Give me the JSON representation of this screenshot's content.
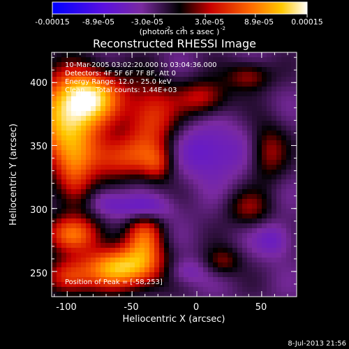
{
  "chart_data": {
    "type": "heatmap",
    "title": "Reconstructed RHESSI Image",
    "xlabel": "Heliocentric X (arcsec)",
    "ylabel": "Heliocentric Y (arcsec)",
    "xlim": [
      -112,
      77
    ],
    "ylim": [
      230,
      424
    ],
    "xticks": [
      -100,
      -50,
      0,
      50
    ],
    "xtick_labels": [
      "-100",
      "-50",
      "0",
      "50"
    ],
    "yticks": [
      250,
      300,
      350,
      400
    ],
    "ytick_labels": [
      "250",
      "300",
      "350",
      "400"
    ],
    "colorbar": {
      "range": [
        -0.00015,
        0.00015
      ],
      "ticks": [
        -0.00015,
        -8.9e-05,
        -3e-05,
        3e-05,
        8.9e-05,
        0.00015
      ],
      "tick_labels": [
        "-0.00015",
        "-8.9e-05",
        "-3.0e-05",
        "3.0e-05",
        "8.9e-05",
        "0.00015"
      ],
      "unit_text": "(photons cm  s  asec )",
      "unit_exponents": [
        "-2",
        "-1",
        "-2"
      ]
    },
    "info": {
      "time_range": "10-Mar-2005 03:02:20.000 to 03:04:36.000",
      "detectors": "Detectors: 4F 5F 6F 7F 8F, Att 0",
      "energy_range": "Energy Range: 12.0 - 25.0 keV",
      "method_counts": "Clean     Total counts: 1.44E+03"
    },
    "peak_text": "Position of Peak = [-58,253]",
    "peak_position": [
      -58,
      253
    ],
    "grid": false,
    "blobs": [
      {
        "x": -100,
        "y": 370,
        "value": 0.00015,
        "sx": 20,
        "sy": 24
      },
      {
        "x": -80,
        "y": 390,
        "value": 0.00011,
        "sx": 18,
        "sy": 14
      },
      {
        "x": -60,
        "y": 340,
        "value": 8e-05,
        "sx": 22,
        "sy": 12
      },
      {
        "x": -35,
        "y": 372,
        "value": 9e-05,
        "sx": 14,
        "sy": 20
      },
      {
        "x": -95,
        "y": 320,
        "value": 7e-05,
        "sx": 10,
        "sy": 16
      },
      {
        "x": -58,
        "y": 253,
        "value": 0.00015,
        "sx": 22,
        "sy": 12
      },
      {
        "x": -95,
        "y": 280,
        "value": 0.0001,
        "sx": 16,
        "sy": 10
      },
      {
        "x": -100,
        "y": 245,
        "value": 8e-05,
        "sx": 12,
        "sy": 10
      },
      {
        "x": -40,
        "y": 278,
        "value": 9e-05,
        "sx": 10,
        "sy": 16
      },
      {
        "x": 5,
        "y": 388,
        "value": 7e-05,
        "sx": 14,
        "sy": 10
      },
      {
        "x": 40,
        "y": 405,
        "value": 6e-05,
        "sx": 12,
        "sy": 8
      },
      {
        "x": 55,
        "y": 345,
        "value": 6e-05,
        "sx": 10,
        "sy": 16
      },
      {
        "x": 40,
        "y": 300,
        "value": 5e-05,
        "sx": 12,
        "sy": 10
      },
      {
        "x": 20,
        "y": 258,
        "value": 5e-05,
        "sx": 10,
        "sy": 8
      },
      {
        "x": -30,
        "y": 335,
        "value": 5e-05,
        "sx": 8,
        "sy": 10
      },
      {
        "x": -40,
        "y": 300,
        "value": -6e-05,
        "sx": 14,
        "sy": 8
      },
      {
        "x": 10,
        "y": 345,
        "value": -5e-05,
        "sx": 20,
        "sy": 16
      },
      {
        "x": -70,
        "y": 305,
        "value": -4e-05,
        "sx": 10,
        "sy": 8
      },
      {
        "x": -10,
        "y": 250,
        "value": -4e-05,
        "sx": 12,
        "sy": 8
      },
      {
        "x": 60,
        "y": 275,
        "value": -4e-05,
        "sx": 10,
        "sy": 10
      }
    ]
  },
  "footer": {
    "date": "8-Jul-2013 21:56"
  }
}
